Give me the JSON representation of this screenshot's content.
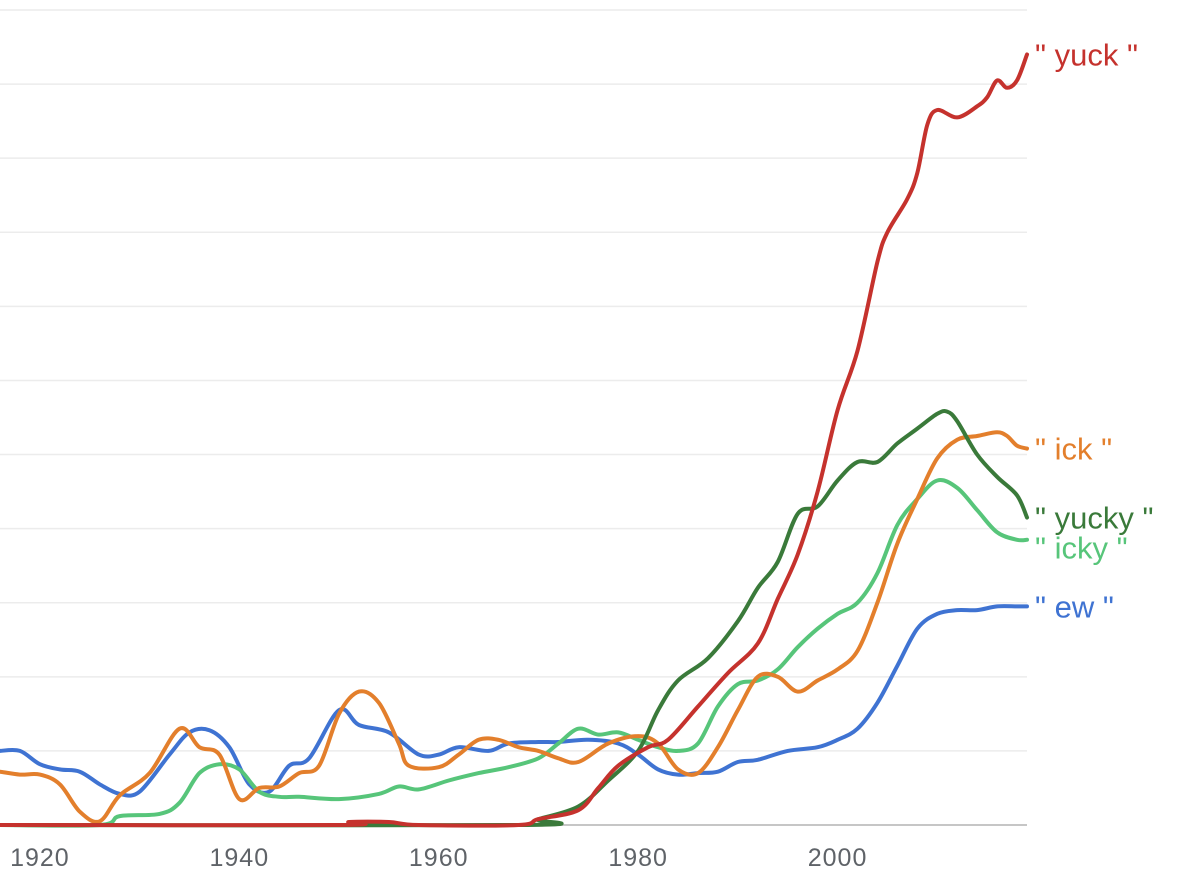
{
  "chart_data": {
    "type": "line",
    "title": "",
    "xlabel": "",
    "ylabel": "",
    "xlim": [
      1916,
      2019
    ],
    "ylim": [
      0,
      11
    ],
    "x_ticks": [
      "1920",
      "1940",
      "1960",
      "1980",
      "2000"
    ],
    "x_tick_values": [
      1920,
      1940,
      1960,
      1980,
      2000
    ],
    "grid": true,
    "legend": "direct labels at line ends (right)",
    "series": [
      {
        "name": "\" yuck \"",
        "color": "#c5322d",
        "points": [
          [
            1916,
            0.0
          ],
          [
            1950,
            0.0
          ],
          [
            1951,
            0.04
          ],
          [
            1955,
            0.04
          ],
          [
            1958,
            0.0
          ],
          [
            1968,
            0.0
          ],
          [
            1970,
            0.08
          ],
          [
            1974,
            0.2
          ],
          [
            1976,
            0.5
          ],
          [
            1978,
            0.8
          ],
          [
            1981,
            1.05
          ],
          [
            1983,
            1.15
          ],
          [
            1986,
            1.6
          ],
          [
            1989,
            2.05
          ],
          [
            1992,
            2.45
          ],
          [
            1994,
            3.05
          ],
          [
            1996,
            3.65
          ],
          [
            1998,
            4.5
          ],
          [
            2000,
            5.6
          ],
          [
            2002,
            6.4
          ],
          [
            2004,
            7.6
          ],
          [
            2005,
            8.0
          ],
          [
            2007,
            8.45
          ],
          [
            2008,
            8.8
          ],
          [
            2009,
            9.45
          ],
          [
            2010,
            9.65
          ],
          [
            2012,
            9.55
          ],
          [
            2014,
            9.7
          ],
          [
            2015,
            9.82
          ],
          [
            2016,
            10.05
          ],
          [
            2017,
            9.95
          ],
          [
            2018,
            10.05
          ],
          [
            2019,
            10.4
          ]
        ]
      },
      {
        "name": "\" ick \"",
        "color": "#e37f2c",
        "points": [
          [
            1916,
            0.72
          ],
          [
            1918,
            0.68
          ],
          [
            1920,
            0.68
          ],
          [
            1922,
            0.55
          ],
          [
            1924,
            0.18
          ],
          [
            1926,
            0.05
          ],
          [
            1928,
            0.4
          ],
          [
            1931,
            0.7
          ],
          [
            1934,
            1.3
          ],
          [
            1936,
            1.05
          ],
          [
            1938,
            0.95
          ],
          [
            1940,
            0.35
          ],
          [
            1942,
            0.5
          ],
          [
            1944,
            0.52
          ],
          [
            1946,
            0.7
          ],
          [
            1948,
            0.8
          ],
          [
            1950,
            1.5
          ],
          [
            1952,
            1.8
          ],
          [
            1954,
            1.65
          ],
          [
            1956,
            1.1
          ],
          [
            1957,
            0.8
          ],
          [
            1960,
            0.78
          ],
          [
            1962,
            0.95
          ],
          [
            1964,
            1.15
          ],
          [
            1966,
            1.15
          ],
          [
            1968,
            1.05
          ],
          [
            1970,
            1.0
          ],
          [
            1972,
            0.9
          ],
          [
            1974,
            0.85
          ],
          [
            1977,
            1.1
          ],
          [
            1980,
            1.2
          ],
          [
            1982,
            1.1
          ],
          [
            1984,
            0.75
          ],
          [
            1986,
            0.7
          ],
          [
            1988,
            1.05
          ],
          [
            1990,
            1.55
          ],
          [
            1992,
            2.0
          ],
          [
            1994,
            2.0
          ],
          [
            1996,
            1.8
          ],
          [
            1998,
            1.95
          ],
          [
            2000,
            2.1
          ],
          [
            2002,
            2.35
          ],
          [
            2004,
            3.0
          ],
          [
            2006,
            3.8
          ],
          [
            2008,
            4.4
          ],
          [
            2010,
            4.95
          ],
          [
            2012,
            5.2
          ],
          [
            2014,
            5.25
          ],
          [
            2016,
            5.3
          ],
          [
            2017,
            5.25
          ],
          [
            2018,
            5.12
          ],
          [
            2019,
            5.08
          ]
        ]
      },
      {
        "name": "\" yucky \"",
        "color": "#3a7a3a",
        "points": [
          [
            1916,
            0.0
          ],
          [
            1968,
            0.0
          ],
          [
            1970,
            0.08
          ],
          [
            1974,
            0.25
          ],
          [
            1977,
            0.6
          ],
          [
            1980,
            1.0
          ],
          [
            1982,
            1.55
          ],
          [
            1984,
            1.95
          ],
          [
            1987,
            2.25
          ],
          [
            1990,
            2.75
          ],
          [
            1992,
            3.2
          ],
          [
            1994,
            3.55
          ],
          [
            1996,
            4.2
          ],
          [
            1998,
            4.3
          ],
          [
            2000,
            4.65
          ],
          [
            2002,
            4.9
          ],
          [
            2004,
            4.9
          ],
          [
            2006,
            5.15
          ],
          [
            2008,
            5.35
          ],
          [
            2010,
            5.55
          ],
          [
            2011,
            5.58
          ],
          [
            2012,
            5.45
          ],
          [
            2014,
            5.0
          ],
          [
            2016,
            4.7
          ],
          [
            2018,
            4.45
          ],
          [
            2019,
            4.15
          ]
        ]
      },
      {
        "name": "\" icky \"",
        "color": "#57c57a",
        "points": [
          [
            1916,
            0.0
          ],
          [
            1926,
            0.0
          ],
          [
            1928,
            0.12
          ],
          [
            1932,
            0.15
          ],
          [
            1934,
            0.3
          ],
          [
            1936,
            0.7
          ],
          [
            1938,
            0.82
          ],
          [
            1940,
            0.75
          ],
          [
            1942,
            0.45
          ],
          [
            1944,
            0.38
          ],
          [
            1946,
            0.38
          ],
          [
            1950,
            0.35
          ],
          [
            1954,
            0.42
          ],
          [
            1956,
            0.52
          ],
          [
            1958,
            0.48
          ],
          [
            1961,
            0.6
          ],
          [
            1964,
            0.7
          ],
          [
            1967,
            0.78
          ],
          [
            1970,
            0.9
          ],
          [
            1972,
            1.1
          ],
          [
            1974,
            1.3
          ],
          [
            1976,
            1.22
          ],
          [
            1978,
            1.25
          ],
          [
            1980,
            1.15
          ],
          [
            1982,
            1.05
          ],
          [
            1984,
            1.0
          ],
          [
            1986,
            1.1
          ],
          [
            1988,
            1.6
          ],
          [
            1990,
            1.9
          ],
          [
            1992,
            1.95
          ],
          [
            1994,
            2.1
          ],
          [
            1996,
            2.4
          ],
          [
            1998,
            2.65
          ],
          [
            2000,
            2.85
          ],
          [
            2002,
            3.0
          ],
          [
            2004,
            3.4
          ],
          [
            2006,
            4.05
          ],
          [
            2008,
            4.4
          ],
          [
            2010,
            4.65
          ],
          [
            2012,
            4.55
          ],
          [
            2014,
            4.25
          ],
          [
            2016,
            3.95
          ],
          [
            2018,
            3.85
          ],
          [
            2019,
            3.85
          ]
        ]
      },
      {
        "name": "\" ew \"",
        "color": "#3f73d2",
        "points": [
          [
            1916,
            1.0
          ],
          [
            1918,
            1.0
          ],
          [
            1920,
            0.82
          ],
          [
            1922,
            0.75
          ],
          [
            1924,
            0.72
          ],
          [
            1926,
            0.55
          ],
          [
            1928,
            0.42
          ],
          [
            1930,
            0.45
          ],
          [
            1933,
            0.95
          ],
          [
            1935,
            1.25
          ],
          [
            1937,
            1.28
          ],
          [
            1939,
            1.05
          ],
          [
            1941,
            0.55
          ],
          [
            1943,
            0.45
          ],
          [
            1945,
            0.8
          ],
          [
            1947,
            0.9
          ],
          [
            1950,
            1.55
          ],
          [
            1952,
            1.35
          ],
          [
            1955,
            1.25
          ],
          [
            1958,
            0.95
          ],
          [
            1960,
            0.95
          ],
          [
            1962,
            1.05
          ],
          [
            1965,
            1.0
          ],
          [
            1967,
            1.1
          ],
          [
            1970,
            1.12
          ],
          [
            1972,
            1.12
          ],
          [
            1975,
            1.15
          ],
          [
            1978,
            1.1
          ],
          [
            1980,
            0.95
          ],
          [
            1982,
            0.75
          ],
          [
            1984,
            0.68
          ],
          [
            1986,
            0.7
          ],
          [
            1988,
            0.72
          ],
          [
            1990,
            0.85
          ],
          [
            1992,
            0.88
          ],
          [
            1995,
            1.0
          ],
          [
            1998,
            1.05
          ],
          [
            2000,
            1.15
          ],
          [
            2002,
            1.3
          ],
          [
            2004,
            1.65
          ],
          [
            2006,
            2.15
          ],
          [
            2008,
            2.65
          ],
          [
            2010,
            2.85
          ],
          [
            2012,
            2.9
          ],
          [
            2014,
            2.9
          ],
          [
            2016,
            2.95
          ],
          [
            2018,
            2.95
          ],
          [
            2019,
            2.95
          ]
        ]
      }
    ]
  }
}
